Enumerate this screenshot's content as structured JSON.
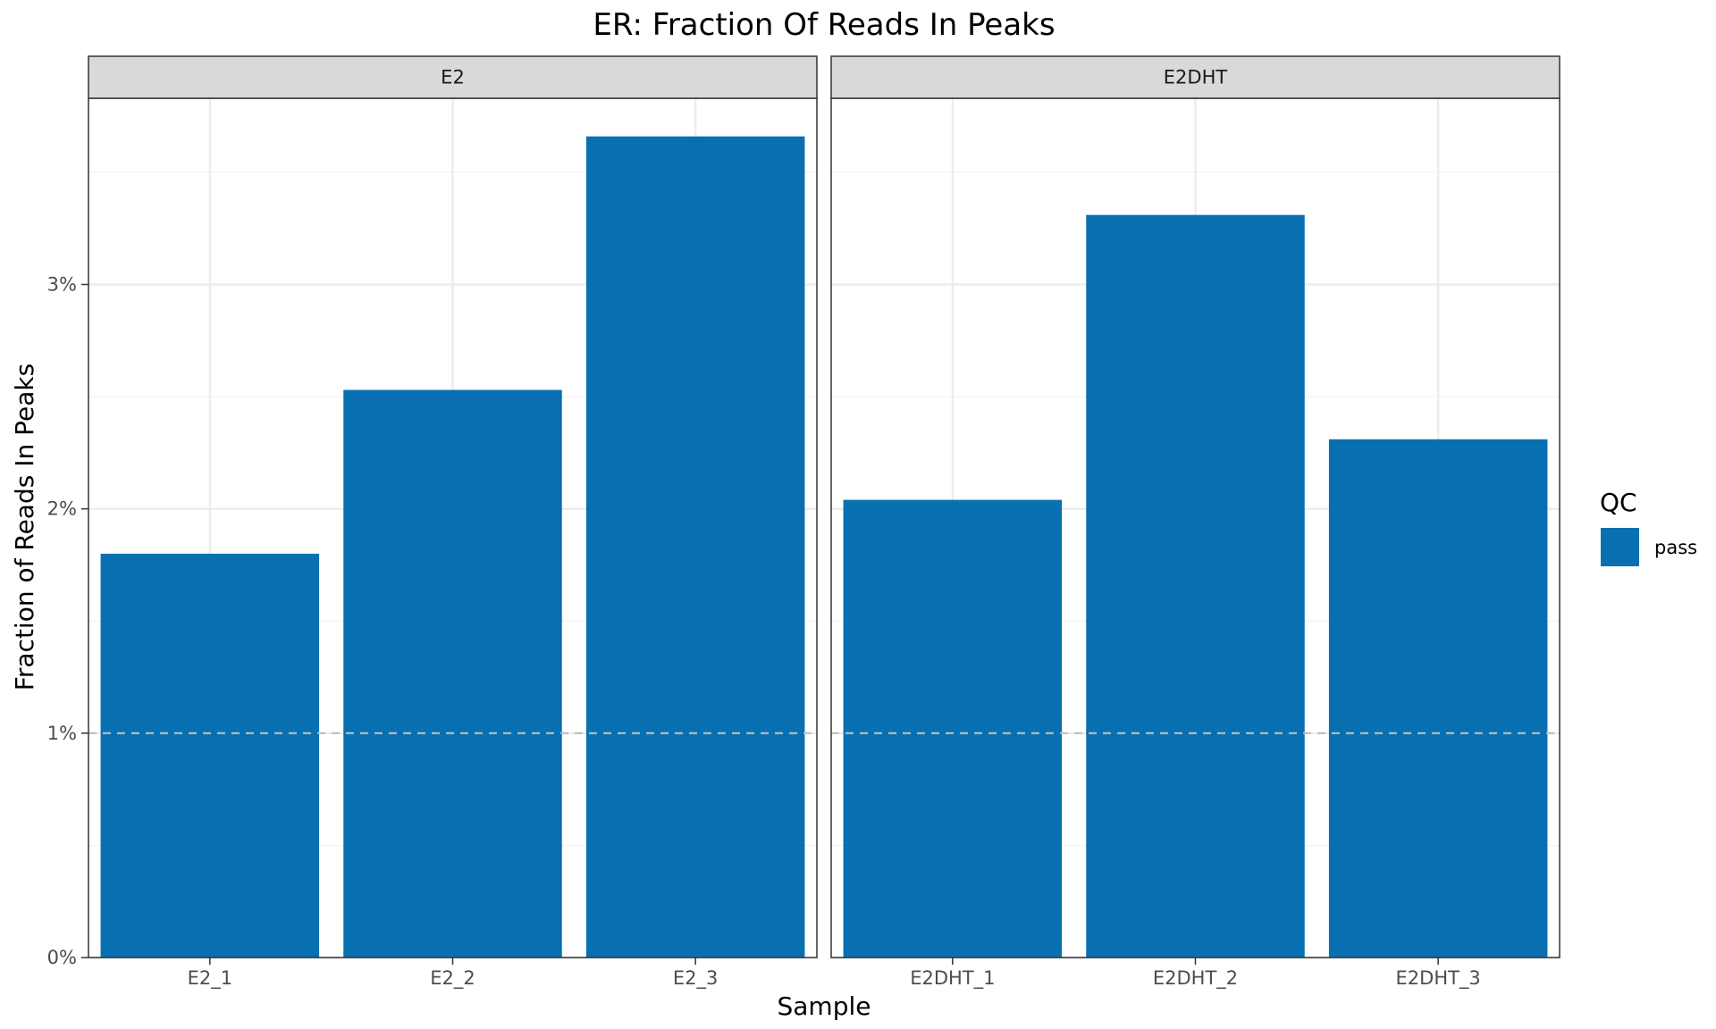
{
  "chart_data": {
    "type": "bar",
    "title": "ER: Fraction Of Reads In Peaks",
    "xlabel": "Sample",
    "ylabel": "Fraction of Reads In Peaks",
    "ylim": [
      0,
      3.83
    ],
    "yticks": [
      0,
      1,
      2,
      3
    ],
    "ytick_labels": [
      "0%",
      "1%",
      "2%",
      "3%"
    ],
    "value_unit": "percent",
    "reference_line": {
      "value": 1,
      "style": "dashed",
      "color": "#bdbdbd"
    },
    "bar_color": "#0870b0",
    "grid": true,
    "legend": {
      "title": "QC",
      "position": "right",
      "entries": [
        {
          "label": "pass",
          "color": "#0870b0"
        }
      ]
    },
    "facets": [
      {
        "label": "E2",
        "categories": [
          "E2_1",
          "E2_2",
          "E2_3"
        ],
        "values": [
          1.8,
          2.53,
          3.66
        ]
      },
      {
        "label": "E2DHT",
        "categories": [
          "E2DHT_1",
          "E2DHT_2",
          "E2DHT_3"
        ],
        "values": [
          2.04,
          3.31,
          2.31
        ]
      }
    ]
  }
}
